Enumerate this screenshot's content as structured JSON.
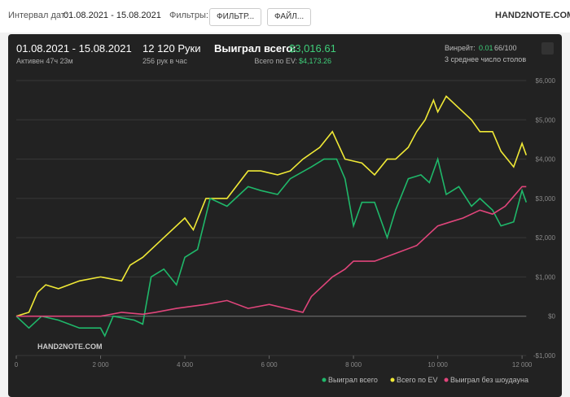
{
  "header": {
    "date_label": "Интервал дат:",
    "date_value": "01.08.2021 - 15.08.2021",
    "filters_label": "Фильтры:",
    "filter_button": "ФИЛЬТР...",
    "file_button": "ФАЙЛ...",
    "logo": "HAND2NOTE.COM"
  },
  "summary": {
    "range": "01.08.2021 - 15.08.2021",
    "active": "Активен 47ч 23м",
    "hands": "12 120 Руки",
    "hands_per_hour": "256 рук в час",
    "won_label": "Выиграл всего:",
    "won_value": "$3,016.61",
    "ev_label": "Всего по EV:",
    "ev_value": "$4,173.26",
    "winrate_label": "Винрейт:",
    "winrate_value": "0.01",
    "winrate_rest": "66/100",
    "tables": "3 среднее число столов"
  },
  "chart_data": {
    "type": "line",
    "watermark": "HAND2NOTE.COM",
    "xlim": [
      0,
      12100
    ],
    "xticks": [
      0,
      {
        "value": 2000,
        "label": "2 000"
      },
      {
        "value": 4000,
        "label": "4 000"
      },
      {
        "value": 6000,
        "label": "6 000"
      },
      {
        "value": 8000,
        "label": "8 000"
      },
      {
        "value": 10000,
        "label": "10 000"
      },
      {
        "value": 12000,
        "label": "12 000"
      }
    ],
    "ylim": [
      -1000,
      6000
    ],
    "yticks": [
      {
        "value": -1000,
        "label": "-$1,000"
      },
      {
        "value": 0,
        "label": "$0"
      },
      {
        "value": 1000,
        "label": "$1,000"
      },
      {
        "value": 2000,
        "label": "$2,000"
      },
      {
        "value": 3000,
        "label": "$3,000"
      },
      {
        "value": 4000,
        "label": "$4,000"
      },
      {
        "value": 5000,
        "label": "$5,000"
      },
      {
        "value": 6000,
        "label": "$6,000"
      }
    ],
    "series": [
      {
        "name": "Выиграл всего",
        "color": "#1fb86a",
        "x": [
          0,
          300,
          600,
          1000,
          1500,
          2000,
          2100,
          2300,
          2800,
          3000,
          3200,
          3500,
          3800,
          4000,
          4300,
          4600,
          5000,
          5500,
          5800,
          6200,
          6500,
          7000,
          7300,
          7600,
          7800,
          8000,
          8200,
          8500,
          8800,
          9000,
          9300,
          9600,
          9800,
          10000,
          10200,
          10500,
          10800,
          11000,
          11300,
          11500,
          11800,
          12000,
          12100
        ],
        "values": [
          0,
          -300,
          0,
          -100,
          -300,
          -300,
          -500,
          0,
          -100,
          -200,
          1000,
          1200,
          800,
          1500,
          1700,
          3000,
          2800,
          3300,
          3200,
          3100,
          3500,
          3800,
          4000,
          4000,
          3500,
          2300,
          2900,
          2900,
          2000,
          2700,
          3500,
          3600,
          3400,
          4000,
          3100,
          3300,
          2800,
          3000,
          2700,
          2300,
          2400,
          3200,
          2900
        ]
      },
      {
        "name": "Всего по EV",
        "color": "#f0e936",
        "x": [
          0,
          300,
          500,
          700,
          1000,
          1500,
          2000,
          2500,
          2700,
          3000,
          3500,
          4000,
          4200,
          4500,
          5000,
          5500,
          5800,
          6200,
          6500,
          6800,
          7200,
          7500,
          7800,
          8200,
          8500,
          8800,
          9000,
          9300,
          9500,
          9700,
          9900,
          10000,
          10200,
          10500,
          10800,
          11000,
          11300,
          11500,
          11800,
          12000,
          12100
        ],
        "values": [
          0,
          100,
          600,
          800,
          700,
          900,
          1000,
          900,
          1300,
          1500,
          2000,
          2500,
          2200,
          3000,
          3000,
          3700,
          3700,
          3600,
          3700,
          4000,
          4300,
          4700,
          4000,
          3900,
          3600,
          4000,
          4000,
          4300,
          4700,
          5000,
          5500,
          5200,
          5600,
          5300,
          5000,
          4700,
          4700,
          4200,
          3800,
          4400,
          4100
        ]
      },
      {
        "name": "Выиграл без шоудауна",
        "color": "#e0457b",
        "x": [
          0,
          1000,
          2000,
          2500,
          3000,
          3300,
          3800,
          4500,
          5000,
          5500,
          6000,
          6400,
          6800,
          7000,
          7300,
          7500,
          7800,
          8000,
          8500,
          9000,
          9500,
          10000,
          10300,
          10600,
          11000,
          11300,
          11600,
          12000,
          12100
        ],
        "values": [
          0,
          0,
          0,
          100,
          50,
          100,
          200,
          300,
          400,
          200,
          300,
          200,
          100,
          500,
          800,
          1000,
          1200,
          1400,
          1400,
          1600,
          1800,
          2300,
          2400,
          2500,
          2700,
          2600,
          2800,
          3300,
          3300
        ]
      }
    ]
  }
}
